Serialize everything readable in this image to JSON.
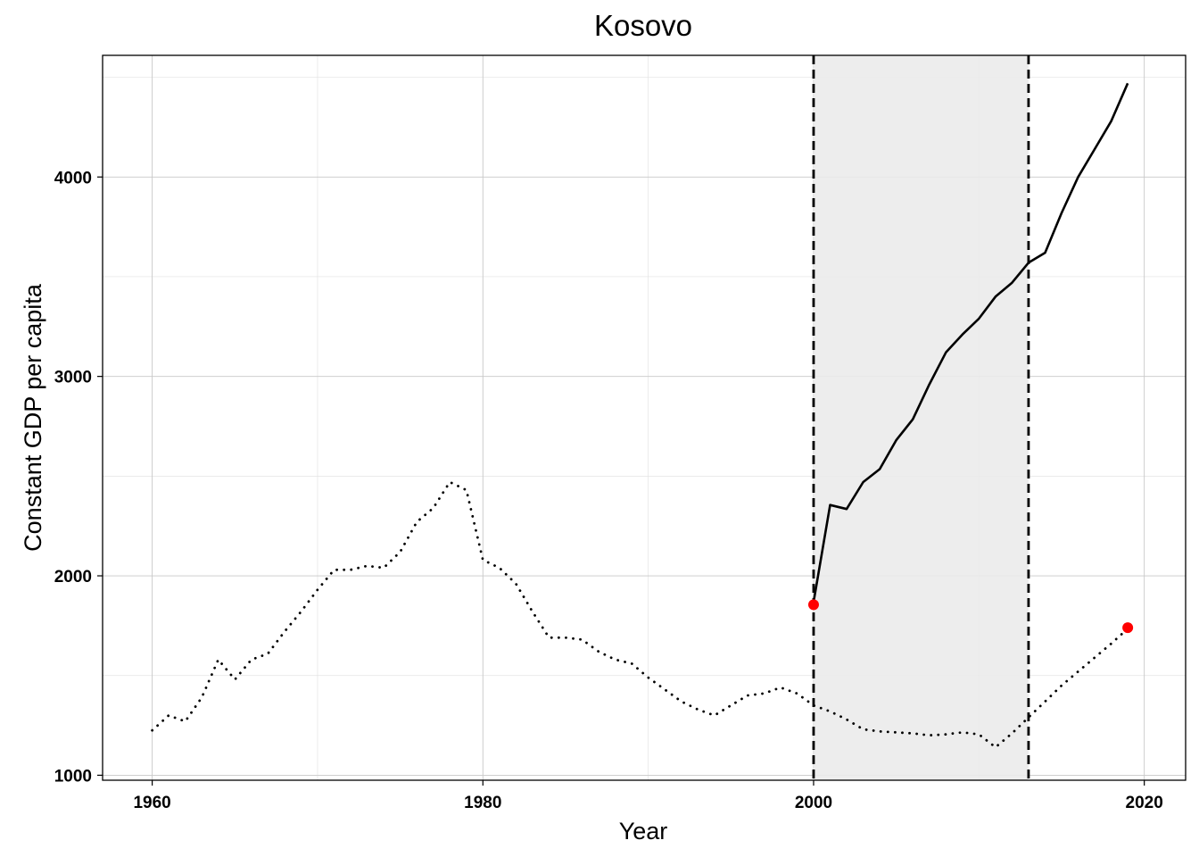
{
  "chart_data": {
    "type": "line",
    "title": "Kosovo",
    "xlabel": "Year",
    "ylabel": "Constant GDP per capita",
    "xlim": [
      1957,
      2022.5
    ],
    "ylim": [
      975,
      4610
    ],
    "x_ticks": [
      1960,
      1980,
      2000,
      2020
    ],
    "y_ticks": [
      1000,
      2000,
      3000,
      4000
    ],
    "grid": true,
    "shaded_region": {
      "x_start": 2000,
      "x_end": 2013,
      "color": "#ebebeb"
    },
    "vlines": [
      2000,
      2013
    ],
    "colors": {
      "line": "#000000",
      "marker": "#ff0000",
      "shade": "#ebebeb"
    },
    "series": [
      {
        "style": "dotted",
        "x": [
          1960,
          1961,
          1962,
          1963,
          1964,
          1965,
          1966,
          1967,
          1968,
          1969,
          1970,
          1971,
          1972,
          1973,
          1974,
          1975,
          1976,
          1977,
          1978,
          1979,
          1980,
          1981,
          1982,
          1983,
          1984,
          1985,
          1986,
          1987,
          1988,
          1989,
          1990,
          1991,
          1992,
          1993,
          1994,
          1995,
          1996,
          1997,
          1998,
          1999,
          2000,
          2001,
          2002,
          2003,
          2004,
          2005,
          2006,
          2007,
          2008,
          2009,
          2010,
          2011,
          2012,
          2013,
          2014,
          2015,
          2016,
          2017,
          2018,
          2019
        ],
        "y": [
          1225,
          1300,
          1270,
          1390,
          1580,
          1480,
          1580,
          1610,
          1720,
          1820,
          1930,
          2030,
          2030,
          2050,
          2040,
          2120,
          2270,
          2340,
          2470,
          2430,
          2080,
          2040,
          1960,
          1820,
          1690,
          1690,
          1680,
          1620,
          1580,
          1560,
          1490,
          1430,
          1370,
          1330,
          1300,
          1350,
          1400,
          1410,
          1440,
          1410,
          1350,
          1320,
          1280,
          1230,
          1220,
          1215,
          1210,
          1200,
          1205,
          1215,
          1205,
          1140,
          1210,
          1290,
          1370,
          1450,
          1520,
          1590,
          1660,
          1735
        ]
      },
      {
        "style": "solid",
        "x": [
          2000,
          2001,
          2002,
          2003,
          2004,
          2005,
          2006,
          2007,
          2008,
          2009,
          2010,
          2011,
          2012,
          2013,
          2014,
          2015,
          2016,
          2017,
          2018,
          2019
        ],
        "y": [
          1870,
          2355,
          2335,
          2470,
          2535,
          2680,
          2785,
          2960,
          3120,
          3210,
          3290,
          3400,
          3470,
          3570,
          3620,
          3820,
          4000,
          4140,
          4280,
          4470
        ]
      }
    ],
    "markers": [
      {
        "x": 2000,
        "y": 1855
      },
      {
        "x": 2019,
        "y": 1740
      }
    ]
  }
}
